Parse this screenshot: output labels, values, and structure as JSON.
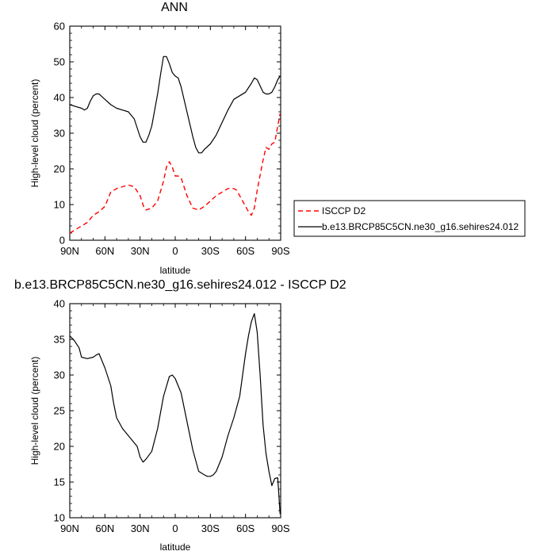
{
  "chart_data": [
    {
      "type": "line",
      "title": "ANN",
      "xlabel": "latitude",
      "ylabel": "High-level cloud (percent)",
      "xlim": [
        90,
        -90
      ],
      "ylim": [
        0,
        60
      ],
      "x_tick_labels": [
        "90N",
        "60N",
        "30N",
        "0",
        "30S",
        "60S",
        "90S"
      ],
      "x_tick_values": [
        90,
        60,
        30,
        0,
        -30,
        -60,
        -90
      ],
      "y_ticks": [
        0,
        10,
        20,
        30,
        40,
        50,
        60
      ],
      "grid": false,
      "legend_position": "right",
      "series": [
        {
          "name": "ISCCP D2",
          "color": "#ff0000",
          "dash": "dashed",
          "x": [
            90,
            85,
            80,
            75,
            70,
            65,
            60,
            55,
            50,
            45,
            40,
            35,
            30,
            27,
            25,
            20,
            15,
            10,
            7.5,
            5,
            2.5,
            0,
            -2.5,
            -5,
            -10,
            -15,
            -20,
            -25,
            -30,
            -35,
            -40,
            -45,
            -50,
            -52.5,
            -55,
            -60,
            -62.5,
            -65,
            -67.5,
            -70,
            -75,
            -77.5,
            -80,
            -82.5,
            -85,
            -87.5,
            -89.5
          ],
          "y": [
            2,
            3,
            4,
            5,
            7,
            8,
            9.5,
            13.5,
            14.5,
            15,
            15.5,
            15,
            12.5,
            9.5,
            8.5,
            9,
            11,
            16.5,
            20.5,
            22,
            20.5,
            18,
            18,
            17.5,
            12.5,
            9,
            8.5,
            9.5,
            11,
            12.5,
            13.5,
            14.5,
            14.5,
            14,
            12.5,
            9.5,
            8,
            7,
            9,
            14,
            22.5,
            26,
            25.5,
            27,
            27.5,
            32,
            35.5
          ]
        },
        {
          "name": "b.e13.BRCP85C5CN.ne30_g16.sehires24.012",
          "color": "#000000",
          "dash": "solid",
          "x": [
            90,
            85,
            80,
            77.5,
            75,
            72.5,
            70,
            67.5,
            65,
            60,
            55,
            50,
            45,
            40,
            37.5,
            35,
            30,
            27.5,
            25,
            22.5,
            20,
            15,
            12.5,
            10,
            7.5,
            5,
            2.5,
            0,
            -2.5,
            -5,
            -7.5,
            -10,
            -15,
            -17.5,
            -20,
            -22.5,
            -25,
            -30,
            -35,
            -40,
            -45,
            -50,
            -55,
            -60,
            -65,
            -67.5,
            -70,
            -75,
            -77.5,
            -80,
            -82.5,
            -85,
            -87.5,
            -89.5
          ],
          "y": [
            38,
            37.5,
            37,
            36.5,
            37,
            39,
            40.5,
            41,
            41,
            39.5,
            38,
            37,
            36.5,
            36,
            35,
            34,
            29,
            27.5,
            27.5,
            29.5,
            32,
            41,
            46.5,
            51.5,
            51.5,
            49.5,
            47,
            46,
            45.5,
            43,
            39.5,
            36,
            29,
            26,
            24.5,
            24.5,
            25.5,
            27,
            29.5,
            33,
            36.5,
            39.5,
            40.5,
            41.5,
            44,
            45.5,
            45,
            41.5,
            41,
            41,
            41.5,
            43,
            45,
            46
          ]
        }
      ]
    },
    {
      "type": "line",
      "title": "b.e13.BRCP85C5CN.ne30_g16.sehires24.012 - ISCCP D2",
      "xlabel": "latitude",
      "ylabel": "High-level cloud (percent)",
      "xlim": [
        90,
        -90
      ],
      "ylim": [
        10,
        40
      ],
      "x_tick_labels": [
        "90N",
        "60N",
        "30N",
        "0",
        "30S",
        "60S",
        "90S"
      ],
      "x_tick_values": [
        90,
        60,
        30,
        0,
        -30,
        -60,
        -90
      ],
      "y_ticks": [
        10,
        15,
        20,
        25,
        30,
        35,
        40
      ],
      "grid": false,
      "series": [
        {
          "color": "#000000",
          "dash": "solid",
          "x": [
            90,
            86,
            82,
            80,
            75,
            70,
            67.5,
            65,
            60,
            55,
            52.5,
            50,
            45,
            40,
            37.5,
            35,
            32.5,
            30,
            27.5,
            25,
            20,
            15,
            10,
            5,
            2.5,
            0,
            -5,
            -10,
            -15,
            -20,
            -25,
            -27.5,
            -30,
            -32.5,
            -35,
            -40,
            -45,
            -50,
            -55,
            -57.5,
            -60,
            -62.5,
            -65,
            -67.5,
            -70,
            -72.5,
            -75,
            -77.5,
            -80,
            -82.5,
            -85,
            -87.5,
            -89.5
          ],
          "y": [
            35.5,
            34.8,
            33.8,
            32.5,
            32.3,
            32.5,
            32.8,
            33,
            31,
            28.5,
            26,
            24,
            22.5,
            21.5,
            21,
            20.5,
            20,
            18.5,
            17.8,
            18.2,
            19.3,
            22.5,
            27,
            29.8,
            30,
            29.5,
            27.5,
            23.5,
            19.5,
            16.5,
            16,
            15.8,
            15.8,
            16,
            16.5,
            18.5,
            21.5,
            24,
            27,
            30,
            33,
            35.5,
            37.5,
            38.6,
            36,
            30,
            23,
            19,
            16.5,
            14.5,
            15.5,
            15.6,
            10.5
          ]
        }
      ]
    }
  ]
}
